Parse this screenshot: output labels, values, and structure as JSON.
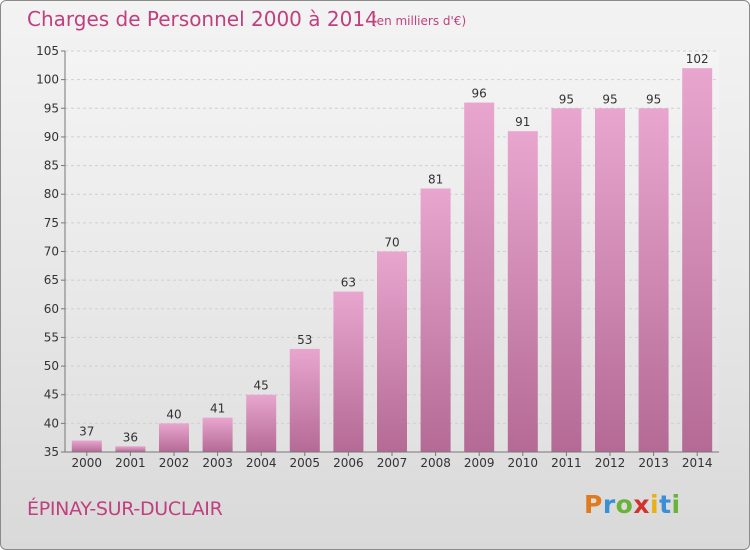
{
  "header": {
    "title": "Charges de Personnel 2000 à 2014",
    "subtitle": "(en milliers d'€)"
  },
  "footer": {
    "place": "ÉPINAY-SUR-DUCLAIR",
    "logo_text": "Proxiti",
    "logo_colors": [
      "#e07a1f",
      "#3a8fd6",
      "#6ab23a",
      "#d0342c",
      "#e8b012",
      "#3a8fd6",
      "#6ab23a"
    ]
  },
  "chart_data": {
    "type": "bar",
    "categories": [
      "2000",
      "2001",
      "2002",
      "2003",
      "2004",
      "2005",
      "2006",
      "2007",
      "2008",
      "2009",
      "2010",
      "2011",
      "2012",
      "2013",
      "2014"
    ],
    "values": [
      37,
      36,
      40,
      41,
      45,
      53,
      63,
      70,
      81,
      96,
      91,
      95,
      95,
      95,
      102
    ],
    "data_labels": [
      "37",
      "36",
      "40",
      "41",
      "45",
      "53",
      "63",
      "70",
      "81",
      "96",
      "91",
      "95",
      "95",
      "95",
      "102"
    ],
    "yticks": [
      "35",
      "40",
      "45",
      "50",
      "55",
      "60",
      "65",
      "70",
      "75",
      "80",
      "85",
      "90",
      "95",
      "100",
      "105"
    ],
    "ylim": [
      35,
      105
    ],
    "grid": true,
    "bar_color_top": "#e8a6cf",
    "bar_color_bottom": "#b46a94",
    "text_color": "#c0407f"
  }
}
